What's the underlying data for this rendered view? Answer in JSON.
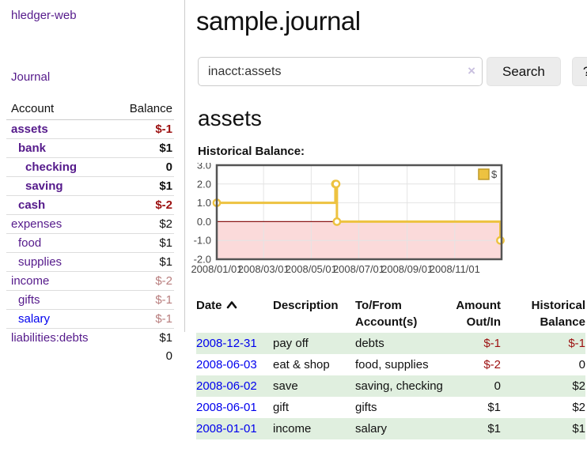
{
  "app": {
    "brand": "hledger-web"
  },
  "sidebar": {
    "nav": {
      "journal": "Journal"
    },
    "accounts_header": {
      "account": "Account",
      "balance": "Balance"
    },
    "accounts": [
      {
        "name": "assets",
        "depth": 0,
        "bold": true,
        "balance": "$-1",
        "tone": "neg-strong"
      },
      {
        "name": "bank",
        "depth": 1,
        "bold": true,
        "balance": "$1",
        "tone": "plain"
      },
      {
        "name": "checking",
        "depth": 2,
        "bold": true,
        "balance": "0",
        "tone": "plain"
      },
      {
        "name": "saving",
        "depth": 2,
        "bold": true,
        "balance": "$1",
        "tone": "plain"
      },
      {
        "name": "cash",
        "depth": 1,
        "bold": true,
        "balance": "$-2",
        "tone": "neg-strong"
      },
      {
        "name": "expenses",
        "depth": 0,
        "bold": false,
        "balance": "$2",
        "tone": "plain"
      },
      {
        "name": "food",
        "depth": 1,
        "bold": false,
        "balance": "$1",
        "tone": "plain"
      },
      {
        "name": "supplies",
        "depth": 1,
        "bold": false,
        "balance": "$1",
        "tone": "plain"
      },
      {
        "name": "income",
        "depth": 0,
        "bold": false,
        "balance": "$-2",
        "tone": "neg-soft"
      },
      {
        "name": "gifts",
        "depth": 1,
        "bold": false,
        "balance": "$-1",
        "tone": "neg-soft"
      },
      {
        "name": "salary",
        "depth": 1,
        "bold": false,
        "balance": "$-1",
        "tone": "neg-soft",
        "link_tone": "blue"
      },
      {
        "name": "liabilities:debts",
        "depth": 0,
        "bold": false,
        "balance": "$1",
        "tone": "plain"
      }
    ],
    "total": "0"
  },
  "header": {
    "title": "sample.journal"
  },
  "search": {
    "value": "inacct:assets",
    "clear_icon": "×",
    "button": "Search",
    "help_button": "?"
  },
  "account_page": {
    "heading": "assets",
    "chart_label": "Historical Balance:"
  },
  "chart_data": {
    "type": "line",
    "style": "step",
    "title": "Historical Balance",
    "series": [
      {
        "name": "$",
        "color": "#edc240",
        "points": [
          [
            "2008-01-01",
            1
          ],
          [
            "2008-06-01",
            2
          ],
          [
            "2008-06-02",
            2
          ],
          [
            "2008-06-03",
            0
          ],
          [
            "2008-12-31",
            -1
          ]
        ]
      }
    ],
    "xlim": [
      "2008-01-01",
      "2008-12-31"
    ],
    "ylim": [
      -2,
      3
    ],
    "yticks": [
      "3.0",
      "2.0",
      "1.0",
      "0.0",
      "-1.0",
      "-2.0"
    ],
    "ytick_values": [
      3,
      2,
      1,
      0,
      -1,
      -2
    ],
    "xticks": [
      "2008/01/01",
      "2008/03/01",
      "2008/05/01",
      "2008/07/01",
      "2008/09/01",
      "2008/11/01"
    ],
    "xtick_dates": [
      "2008-01-01",
      "2008-03-01",
      "2008-05-01",
      "2008-07-01",
      "2008-09-01",
      "2008-11-01"
    ],
    "grid": true,
    "legend": {
      "position": "top-right",
      "entries": [
        "$"
      ]
    },
    "colors": {
      "border": "#545454",
      "gridline": "#e4e4e4",
      "negative_region": "#fbdada",
      "zero_line": "#8c1717",
      "tick_label": "#444444"
    }
  },
  "register": {
    "columns": {
      "date": "Date",
      "sort_icon": "chevron-up",
      "description": "Description",
      "accounts": "To/From Account(s)",
      "amount": "Amount Out/In",
      "balance": "Historical Balance"
    },
    "rows": [
      {
        "date": "2008-12-31",
        "description": "pay off",
        "accounts": "debts",
        "amount": "$-1",
        "balance": "$-1"
      },
      {
        "date": "2008-06-03",
        "description": "eat & shop",
        "accounts": "food, supplies",
        "amount": "$-2",
        "balance": "0"
      },
      {
        "date": "2008-06-02",
        "description": "save",
        "accounts": "saving, checking",
        "amount": "0",
        "balance": "$2"
      },
      {
        "date": "2008-06-01",
        "description": "gift",
        "accounts": "gifts",
        "amount": "$1",
        "balance": "$2"
      },
      {
        "date": "2008-01-01",
        "description": "income",
        "accounts": "salary",
        "amount": "$1",
        "balance": "$1"
      }
    ]
  }
}
